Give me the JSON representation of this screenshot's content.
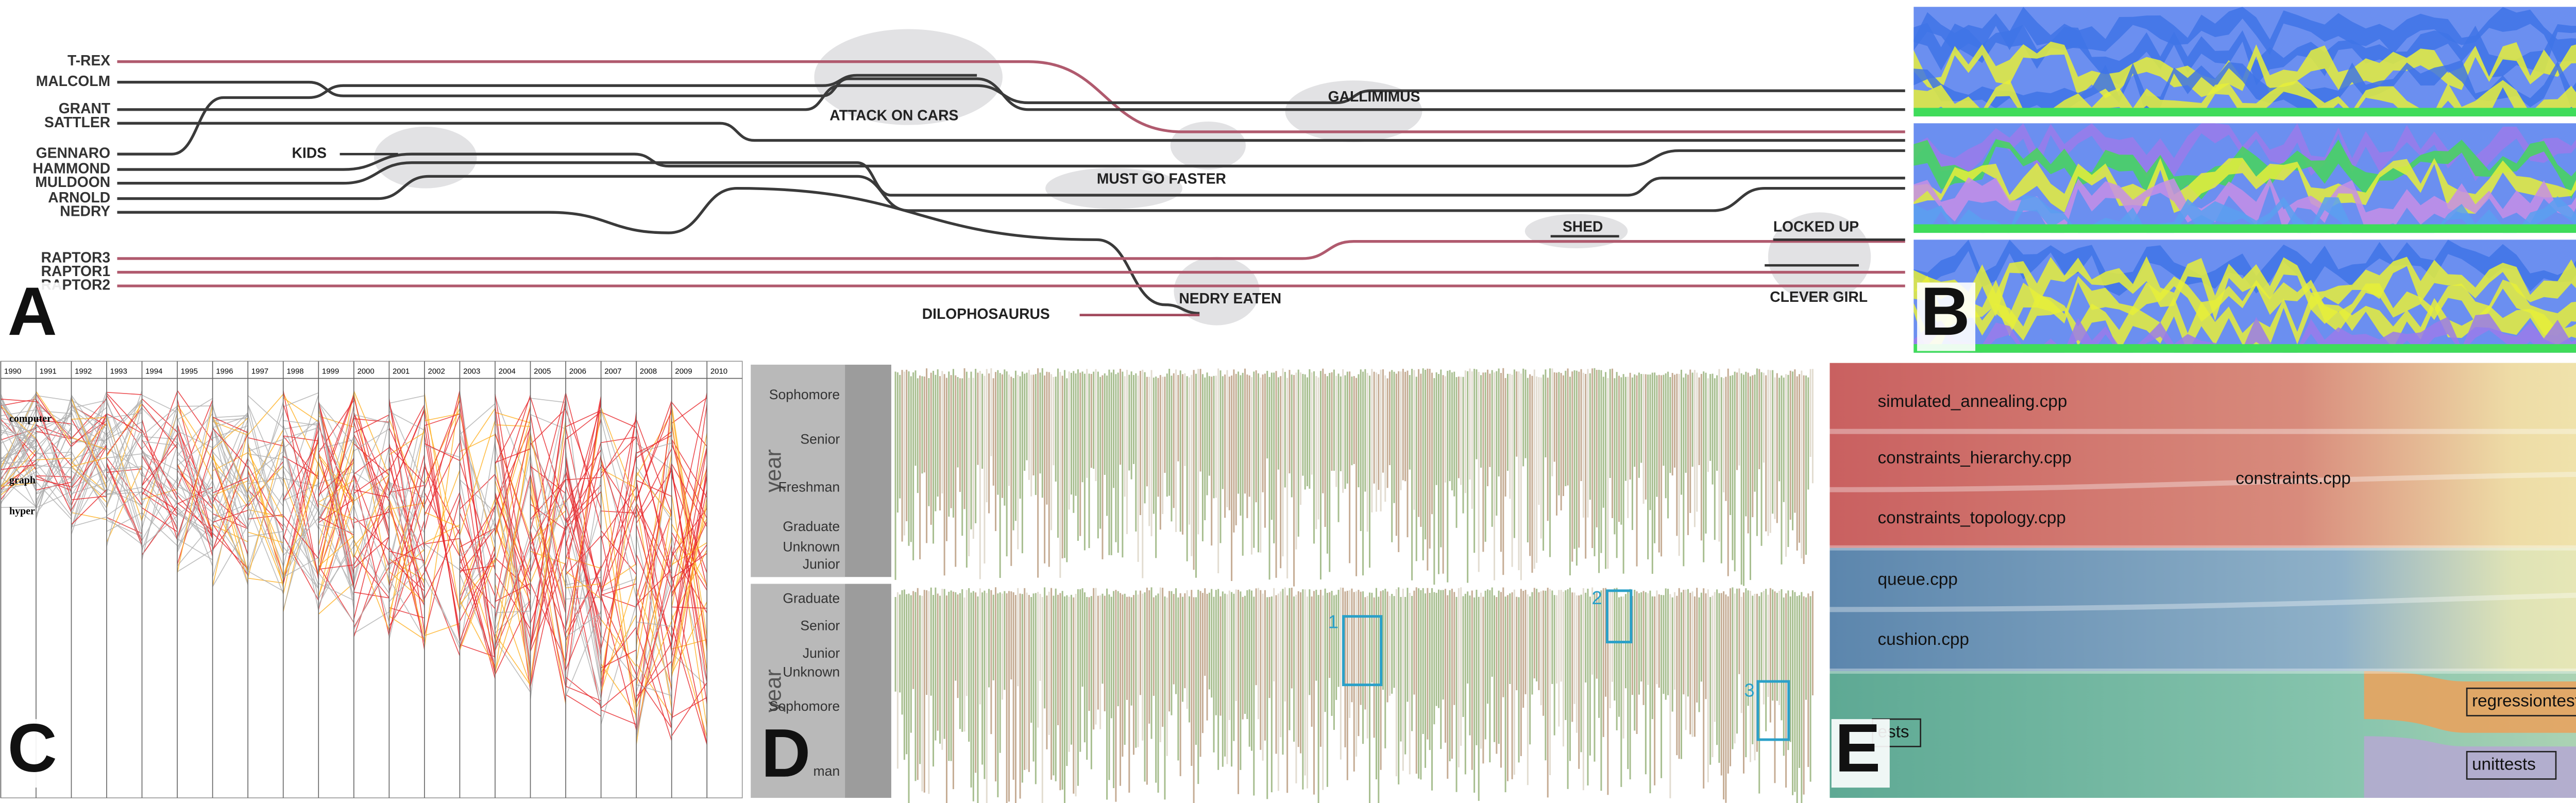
{
  "panel_labels": [
    "A",
    "B",
    "C",
    "D",
    "E"
  ],
  "storyline": {
    "characters": [
      "T-REX",
      "MALCOLM",
      "GRANT",
      "SATTLER",
      "GENNARO",
      "HAMMOND",
      "MULDOON",
      "ARNOLD",
      "NEDRY",
      "RAPTOR3",
      "RAPTOR1",
      "RAPTOR2"
    ],
    "events": [
      "ATTACK ON CARS",
      "GALLIMIMUS",
      "KIDS",
      "MUST GO FASTER",
      "SHED",
      "LOCKED UP",
      "NEDRY EATEN",
      "CLEVER GIRL",
      "DILOPHOSAURUS"
    ]
  },
  "panel_c": {
    "years": [
      "1990",
      "1991",
      "1992",
      "1993",
      "1994",
      "1995",
      "1996",
      "1997",
      "1998",
      "1999",
      "2000",
      "2001",
      "2002",
      "2003",
      "2004",
      "2005",
      "2006",
      "2007",
      "2008",
      "2009",
      "2010"
    ],
    "terms": [
      "computer",
      "graph",
      "hyper"
    ]
  },
  "panel_d": {
    "axis_label": "year",
    "top_levels": [
      "Sophomore",
      "Senior",
      "Freshman",
      "Graduate",
      "Unknown",
      "Junior"
    ],
    "bottom_levels": [
      "Graduate",
      "Senior",
      "Junior",
      "Unknown",
      "Sophomore",
      "man"
    ],
    "markers": [
      "1",
      "2",
      "3"
    ]
  },
  "panel_e": {
    "files": [
      "simulated_annealing.cpp",
      "constraints_hierarchy.cpp",
      "constraints_topology.cpp",
      "queue.cpp",
      "cushion.cpp"
    ],
    "merged": "constraints.cpp",
    "boxes": [
      "ests",
      "regressiontests",
      "unittests"
    ]
  }
}
